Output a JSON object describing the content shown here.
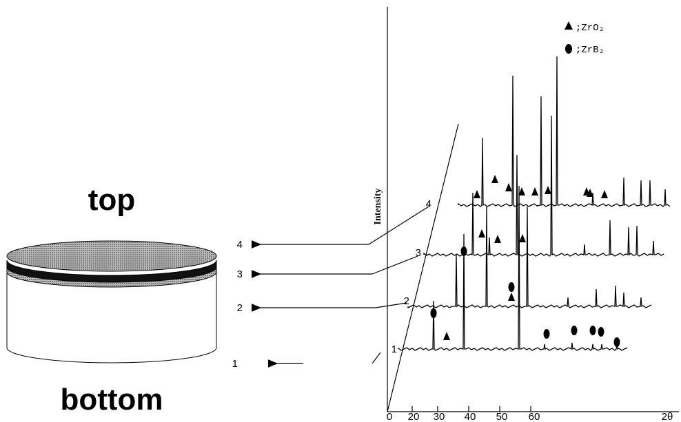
{
  "cylinder": {
    "top_label": "top",
    "bottom_label": "bottom",
    "layer_labels": [
      "4",
      "3",
      "2",
      "1"
    ]
  },
  "plot": {
    "y_axis_label": "Intensity",
    "x_axis_label": "2θ",
    "x_ticks": [
      "0",
      "20",
      "30",
      "40",
      "50",
      "60"
    ],
    "trace_labels": [
      "4",
      "3",
      "2",
      "1"
    ],
    "legend": [
      ";ZrO₂",
      ";ZrB₂"
    ]
  }
}
